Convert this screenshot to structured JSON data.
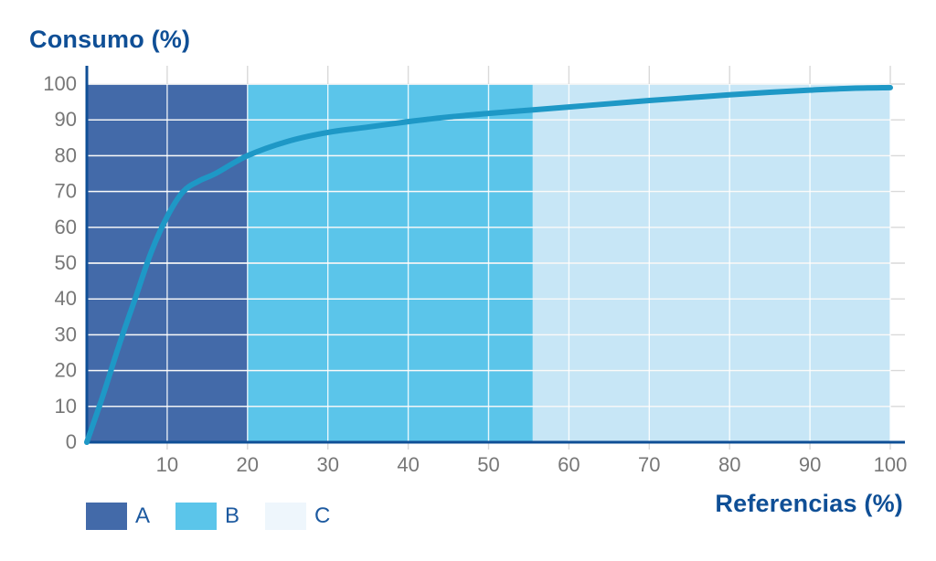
{
  "chart_data": {
    "type": "area",
    "title": "",
    "ylabel": "Consumo (%)",
    "xlabel": "Referencias (%)",
    "xlim": [
      0,
      100
    ],
    "ylim": [
      0,
      100
    ],
    "x_ticks": [
      10,
      20,
      30,
      40,
      50,
      60,
      70,
      80,
      90,
      100
    ],
    "y_ticks": [
      0,
      10,
      20,
      30,
      40,
      50,
      60,
      70,
      80,
      90,
      100
    ],
    "grid": true,
    "zones": [
      {
        "name": "A",
        "x_start": 0,
        "x_end": 20,
        "color": "#436aa9"
      },
      {
        "name": "B",
        "x_start": 20,
        "x_end": 55.5,
        "color": "#5bc5ea"
      },
      {
        "name": "C",
        "x_start": 55.5,
        "x_end": 100,
        "color": "#c7e6f6"
      }
    ],
    "series": [
      {
        "color": "#1e98c6",
        "x": [
          0,
          2,
          4,
          6,
          8,
          10,
          12,
          14,
          16,
          20,
          25,
          30,
          35,
          40,
          45,
          50,
          55,
          60,
          65,
          70,
          75,
          80,
          85,
          90,
          95,
          100
        ],
        "values": [
          0,
          13,
          27,
          40,
          53,
          63,
          70,
          73,
          75,
          80,
          84,
          86.5,
          88,
          89.5,
          90.8,
          91.8,
          92.7,
          93.6,
          94.5,
          95.4,
          96.2,
          97,
          97.7,
          98.3,
          98.8,
          99
        ]
      }
    ],
    "legend_position": "bottom-left"
  },
  "legend": {
    "items": [
      {
        "label": "A",
        "color": "#436aa9"
      },
      {
        "label": "B",
        "color": "#5bc5ea"
      },
      {
        "label": "C",
        "color": "#eef6fc"
      }
    ]
  },
  "colors": {
    "axis": "#0f4f96",
    "grid": "#ffffff",
    "tick_text": "#777777",
    "title_text": "#0f4f96"
  }
}
